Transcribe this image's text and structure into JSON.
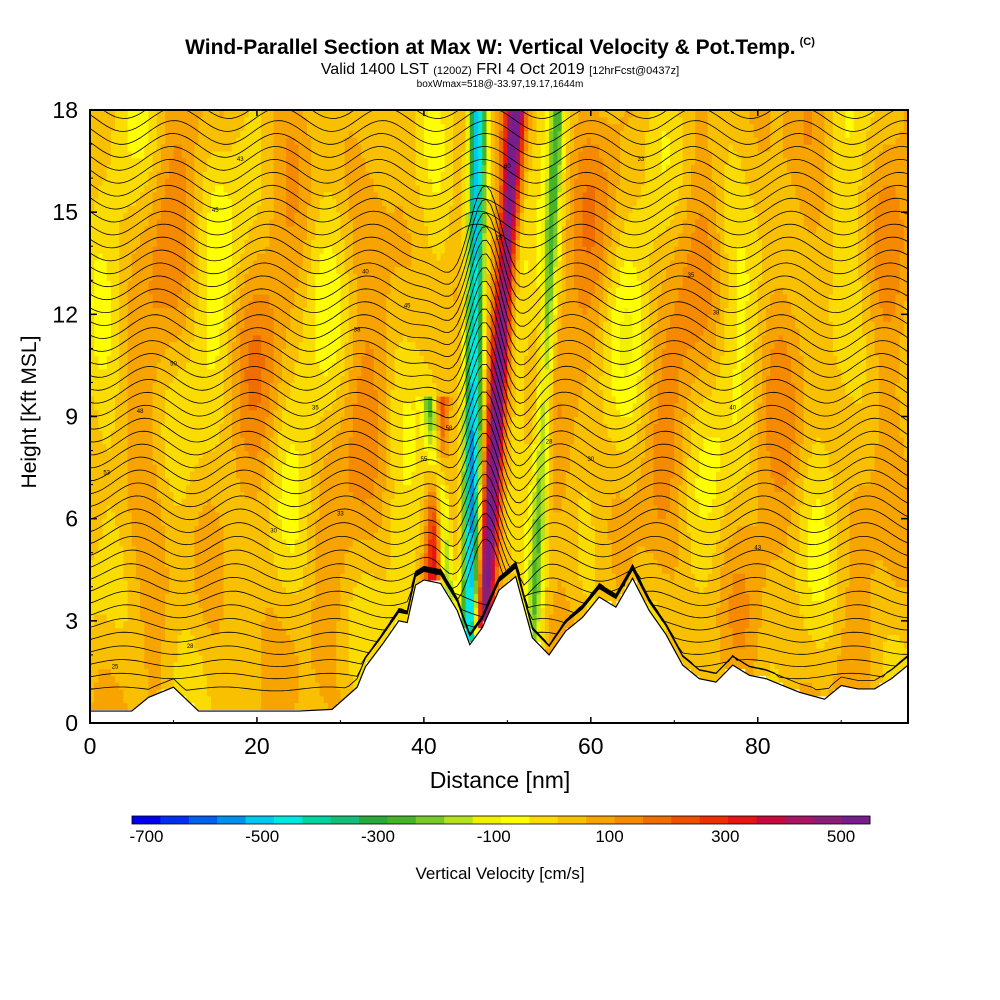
{
  "title": {
    "main": "Wind-Parallel Section at Max W: Vertical Velocity & Pot.Temp.",
    "copyright": "(C)",
    "valid_prefix": "Valid 1400 LST",
    "valid_utc": "(1200Z)",
    "valid_date": "FRI 4 Oct 2019",
    "forecast": "[12hrFcst@0437z]",
    "box_info": "boxWmax=518@-33.97,19.17,1644m"
  },
  "chart_data": {
    "type": "heatmap",
    "xlabel": "Distance [nm]",
    "ylabel": "Height [Kft MSL]",
    "xlim": [
      0,
      98
    ],
    "ylim": [
      0,
      18
    ],
    "x_ticks": [
      "0",
      "20",
      "40",
      "60",
      "80"
    ],
    "y_ticks": [
      "0",
      "3",
      "6",
      "9",
      "12",
      "15",
      "18"
    ],
    "colorbar": {
      "label": "Vertical Velocity [cm/s]",
      "tick_labels": [
        "-700",
        "-500",
        "-300",
        "-100",
        "100",
        "300",
        "500"
      ],
      "range": [
        -725,
        550
      ],
      "colors": [
        "#0000ee",
        "#0030ee",
        "#0060ee",
        "#0090ee",
        "#00c8ee",
        "#00e8e0",
        "#00d2a0",
        "#14be78",
        "#28aa3c",
        "#46b428",
        "#78c828",
        "#b4e11e",
        "#f0f000",
        "#ffff00",
        "#fadc00",
        "#f8c000",
        "#f8a400",
        "#f58a00",
        "#f06e00",
        "#ee5000",
        "#ec3000",
        "#e61414",
        "#c80a3c",
        "#aa1464",
        "#8c1e78",
        "#781e8c"
      ]
    },
    "terrain_kft": [
      [
        0,
        0.35
      ],
      [
        5,
        0.35
      ],
      [
        7,
        0.75
      ],
      [
        10,
        1.05
      ],
      [
        13,
        0.35
      ],
      [
        20,
        0.35
      ],
      [
        25,
        0.35
      ],
      [
        29,
        0.4
      ],
      [
        32,
        1.05
      ],
      [
        33,
        1.65
      ],
      [
        35,
        2.3
      ],
      [
        37,
        3.0
      ],
      [
        38,
        2.95
      ],
      [
        39,
        4.05
      ],
      [
        40,
        4.2
      ],
      [
        42,
        4.1
      ],
      [
        44,
        3.3
      ],
      [
        45.5,
        2.3
      ],
      [
        47,
        2.8
      ],
      [
        49,
        3.9
      ],
      [
        51,
        4.3
      ],
      [
        53,
        2.5
      ],
      [
        55,
        2.0
      ],
      [
        57,
        2.7
      ],
      [
        59,
        3.1
      ],
      [
        61,
        3.7
      ],
      [
        63,
        3.4
      ],
      [
        65,
        4.25
      ],
      [
        67,
        3.3
      ],
      [
        69,
        2.6
      ],
      [
        71,
        1.7
      ],
      [
        73,
        1.3
      ],
      [
        75,
        1.2
      ],
      [
        77,
        1.7
      ],
      [
        79,
        1.4
      ],
      [
        81,
        1.3
      ],
      [
        83,
        1.1
      ],
      [
        85,
        0.9
      ],
      [
        88,
        0.7
      ],
      [
        90,
        1.1
      ],
      [
        92,
        1.0
      ],
      [
        94,
        1.0
      ],
      [
        96,
        1.3
      ],
      [
        98,
        1.7
      ]
    ],
    "features": [
      {
        "type": "updraft",
        "x_kft_bottom": [
          47,
          2.5
        ],
        "x_kft_top": [
          51,
          18
        ],
        "w_cms": 518
      },
      {
        "type": "downdraft",
        "x_kft_bottom": [
          45.5,
          2.0
        ],
        "x_kft_top": [
          46.5,
          18
        ],
        "w_cms": -600
      },
      {
        "type": "downdraft",
        "x_kft_bottom": [
          53,
          2.0
        ],
        "x_kft_top": [
          56,
          18
        ],
        "w_cms": -250
      },
      {
        "type": "updraft",
        "x_kft_bottom": [
          41,
          4.5
        ],
        "x_kft_top": [
          42,
          9
        ],
        "w_cms": 250
      },
      {
        "type": "downdraft",
        "x_kft_bottom": [
          43,
          4.0
        ],
        "x_kft_top": [
          41,
          9
        ],
        "w_cms": -300
      }
    ],
    "isentrope_labels": [
      "25",
      "28",
      "30",
      "33",
      "35",
      "38",
      "40",
      "43",
      "45",
      "48",
      "50",
      "53",
      "55",
      "58",
      "60"
    ],
    "grid": false
  }
}
